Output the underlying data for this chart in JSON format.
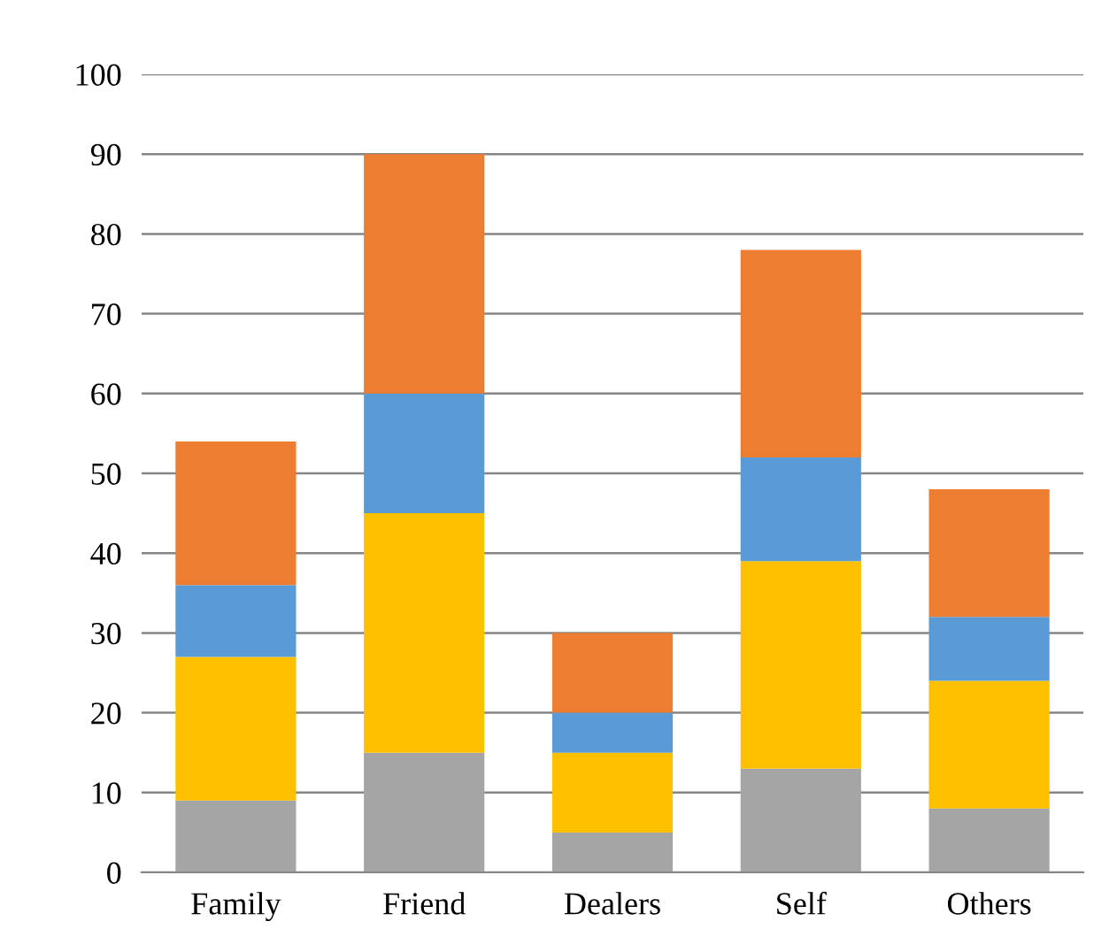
{
  "chart_data": {
    "type": "bar",
    "stacked": true,
    "categories": [
      "Family",
      "Friend",
      "Dealers",
      "Self",
      "Others"
    ],
    "series": [
      {
        "color": "#a5a5a5",
        "values": [
          9,
          15,
          5,
          13,
          8
        ]
      },
      {
        "color": "#ffc000",
        "values": [
          18,
          30,
          10,
          26,
          16
        ]
      },
      {
        "color": "#5b9bd5",
        "values": [
          9,
          15,
          5,
          13,
          8
        ]
      },
      {
        "color": "#ed7d31",
        "values": [
          18,
          30,
          10,
          26,
          16
        ]
      }
    ],
    "ylim": [
      0,
      100
    ],
    "yticks": [
      0,
      10,
      20,
      30,
      40,
      50,
      60,
      70,
      80,
      90,
      100
    ],
    "grid": "y"
  }
}
